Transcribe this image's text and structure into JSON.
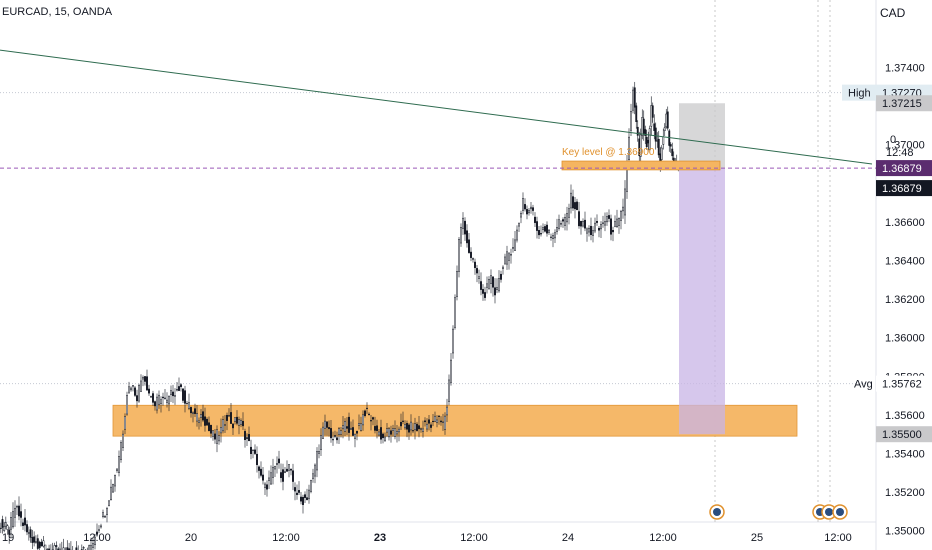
{
  "header": {
    "symbol_line": "EURCAD, 15, OANDA",
    "currency": "CAD"
  },
  "labels": {
    "high_label": "High",
    "avg_label": "Avg",
    "time_left": "12:48",
    "stray_zero": "0"
  },
  "colors": {
    "candle": "#131722",
    "supply_zone": "#f5b561",
    "key_level": "#e0912d",
    "target_box": "#c8b4e6",
    "stop_box": "#c9c9cb",
    "trendline": "#2e6b4f",
    "current_price_tag": "#5b2c6f",
    "last_price_tag": "#131722",
    "axis_tag": "#e1ecf2"
  },
  "chart_data": {
    "type": "candlestick",
    "title": "EURCAD, 15, OANDA",
    "ylabel": "CAD",
    "ylim": [
      1.349,
      1.3775
    ],
    "y_ticks": [
      "1.37400",
      "1.37000",
      "1.36600",
      "1.36400",
      "1.36200",
      "1.36000",
      "1.35800",
      "1.35600",
      "1.35400",
      "1.35200",
      "1.35000"
    ],
    "x_ticks": [
      {
        "label": "19",
        "bold": false
      },
      {
        "label": "12:00",
        "bold": false
      },
      {
        "label": "20",
        "bold": false
      },
      {
        "label": "12:00",
        "bold": false
      },
      {
        "label": "23",
        "bold": true
      },
      {
        "label": "12:00",
        "bold": false
      },
      {
        "label": "24",
        "bold": false
      },
      {
        "label": "12:00",
        "bold": false
      },
      {
        "label": "25",
        "bold": false
      },
      {
        "label": "12:00",
        "bold": false
      }
    ],
    "price_path": [
      [
        0,
        1.3504
      ],
      [
        10,
        1.35
      ],
      [
        16,
        1.3512
      ],
      [
        22,
        1.3506
      ],
      [
        28,
        1.3499
      ],
      [
        35,
        1.3495
      ],
      [
        50,
        1.349
      ],
      [
        70,
        1.3488
      ],
      [
        90,
        1.349
      ],
      [
        98,
        1.35
      ],
      [
        106,
        1.351
      ],
      [
        112,
        1.3522
      ],
      [
        118,
        1.3533
      ],
      [
        124,
        1.3552
      ],
      [
        128,
        1.3572
      ],
      [
        132,
        1.3576
      ],
      [
        138,
        1.357
      ],
      [
        144,
        1.3582
      ],
      [
        150,
        1.3572
      ],
      [
        156,
        1.3565
      ],
      [
        162,
        1.357
      ],
      [
        168,
        1.3566
      ],
      [
        174,
        1.3572
      ],
      [
        180,
        1.3574
      ],
      [
        186,
        1.3568
      ],
      [
        192,
        1.3562
      ],
      [
        198,
        1.3558
      ],
      [
        204,
        1.356
      ],
      [
        210,
        1.3552
      ],
      [
        216,
        1.3548
      ],
      [
        222,
        1.3552
      ],
      [
        228,
        1.356
      ],
      [
        234,
        1.3555
      ],
      [
        240,
        1.3558
      ],
      [
        246,
        1.355
      ],
      [
        252,
        1.3542
      ],
      [
        258,
        1.3536
      ],
      [
        262,
        1.3527
      ],
      [
        266,
        1.3522
      ],
      [
        272,
        1.3528
      ],
      [
        278,
        1.3535
      ],
      [
        284,
        1.3528
      ],
      [
        290,
        1.3532
      ],
      [
        296,
        1.3522
      ],
      [
        302,
        1.3515
      ],
      [
        308,
        1.3518
      ],
      [
        314,
        1.3528
      ],
      [
        318,
        1.354
      ],
      [
        322,
        1.3548
      ],
      [
        326,
        1.3555
      ],
      [
        330,
        1.3552
      ],
      [
        336,
        1.3546
      ],
      [
        342,
        1.3552
      ],
      [
        348,
        1.3556
      ],
      [
        354,
        1.3548
      ],
      [
        360,
        1.3555
      ],
      [
        366,
        1.3562
      ],
      [
        372,
        1.3558
      ],
      [
        378,
        1.3552
      ],
      [
        384,
        1.3548
      ],
      [
        390,
        1.3552
      ],
      [
        396,
        1.355
      ],
      [
        402,
        1.3556
      ],
      [
        408,
        1.3552
      ],
      [
        414,
        1.3554
      ],
      [
        420,
        1.3552
      ],
      [
        426,
        1.3555
      ],
      [
        432,
        1.3556
      ],
      [
        438,
        1.3558
      ],
      [
        444,
        1.3555
      ],
      [
        448,
        1.3565
      ],
      [
        452,
        1.359
      ],
      [
        456,
        1.362
      ],
      [
        460,
        1.365
      ],
      [
        464,
        1.3662
      ],
      [
        468,
        1.365
      ],
      [
        472,
        1.364
      ],
      [
        476,
        1.3636
      ],
      [
        480,
        1.363
      ],
      [
        484,
        1.3622
      ],
      [
        488,
        1.3625
      ],
      [
        492,
        1.363
      ],
      [
        496,
        1.3624
      ],
      [
        500,
        1.363
      ],
      [
        504,
        1.3636
      ],
      [
        508,
        1.3642
      ],
      [
        512,
        1.3646
      ],
      [
        516,
        1.365
      ],
      [
        520,
        1.366
      ],
      [
        524,
        1.3672
      ],
      [
        528,
        1.3664
      ],
      [
        532,
        1.3668
      ],
      [
        536,
        1.366
      ],
      [
        540,
        1.3654
      ],
      [
        544,
        1.3658
      ],
      [
        548,
        1.3655
      ],
      [
        552,
        1.3652
      ],
      [
        556,
        1.3656
      ],
      [
        560,
        1.366
      ],
      [
        564,
        1.3658
      ],
      [
        568,
        1.3664
      ],
      [
        572,
        1.3672
      ],
      [
        576,
        1.3668
      ],
      [
        580,
        1.366
      ],
      [
        584,
        1.3658
      ],
      [
        588,
        1.3656
      ],
      [
        592,
        1.3655
      ],
      [
        596,
        1.3658
      ],
      [
        600,
        1.3656
      ],
      [
        604,
        1.366
      ],
      [
        608,
        1.3662
      ],
      [
        612,
        1.3656
      ],
      [
        616,
        1.3658
      ],
      [
        620,
        1.366
      ],
      [
        624,
        1.3666
      ],
      [
        628,
        1.369
      ],
      [
        630,
        1.3705
      ],
      [
        632,
        1.3716
      ],
      [
        634,
        1.3727
      ],
      [
        637,
        1.371
      ],
      [
        640,
        1.3695
      ],
      [
        643,
        1.3712
      ],
      [
        646,
        1.3702
      ],
      [
        649,
        1.3698
      ],
      [
        652,
        1.3718
      ],
      [
        655,
        1.3706
      ],
      [
        658,
        1.37
      ],
      [
        661,
        1.369
      ],
      [
        664,
        1.3706
      ],
      [
        667,
        1.3715
      ],
      [
        670,
        1.37
      ],
      [
        673,
        1.3695
      ],
      [
        676,
        1.369
      ],
      [
        679,
        1.3687
      ]
    ],
    "levels": {
      "high": "1.37270",
      "avg": "1.35762",
      "current": "1.36879",
      "last": "1.36879",
      "stop": "1.37215",
      "target": "1.35500"
    },
    "key_level_label": "Key level @ 1.36900",
    "annotations": {
      "supply_zone": [
        1.3549,
        1.3565
      ],
      "key_level_zone": [
        1.3688,
        1.36905
      ],
      "stop_zone": [
        1.36879,
        1.37215
      ],
      "target_zone": [
        1.355,
        1.36879
      ],
      "trendline": [
        [
          0,
          1.3749
        ],
        [
          872,
          1.369
        ]
      ]
    }
  }
}
